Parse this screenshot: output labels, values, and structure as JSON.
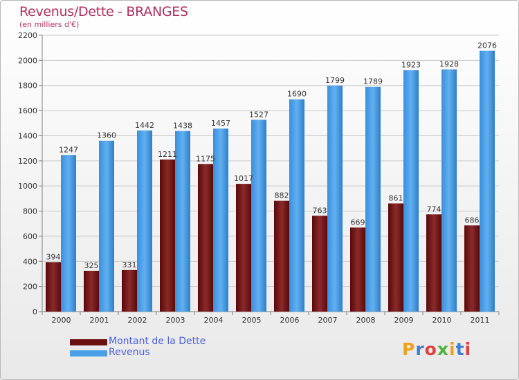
{
  "header": {
    "title": "Revenus/Dette - BRANGES",
    "subtitle": "(en milliers d'€)"
  },
  "colors": {
    "dette": "#6a1010",
    "revenus": "#4aa0e6"
  },
  "legend": {
    "dette_label": "Montant de la Dette",
    "revenus_label": "Revenus"
  },
  "logo": {
    "text": "Proxiti",
    "letter_colors": [
      "#f0a020",
      "#3a7fd0",
      "#e04040",
      "#50b040",
      "#f0a020",
      "#3a7fd0",
      "#e04040"
    ]
  },
  "chart_data": {
    "type": "bar",
    "categories": [
      "2000",
      "2001",
      "2002",
      "2003",
      "2004",
      "2005",
      "2006",
      "2007",
      "2008",
      "2009",
      "2010",
      "2011"
    ],
    "series": [
      {
        "name": "Montant de la Dette",
        "values": [
          394,
          325,
          331,
          1211,
          1175,
          1017,
          882,
          763,
          669,
          861,
          774,
          686
        ]
      },
      {
        "name": "Revenus",
        "values": [
          1247,
          1360,
          1442,
          1438,
          1457,
          1527,
          1690,
          1799,
          1789,
          1923,
          1928,
          2076
        ]
      }
    ],
    "title": "Revenus/Dette - BRANGES",
    "subtitle": "(en milliers d'€)",
    "ylim": [
      0,
      2200
    ],
    "yticks": [
      0,
      200,
      400,
      600,
      800,
      1000,
      1200,
      1400,
      1600,
      1800,
      2000,
      2200
    ],
    "grid": true,
    "legend_position": "bottom-left"
  }
}
